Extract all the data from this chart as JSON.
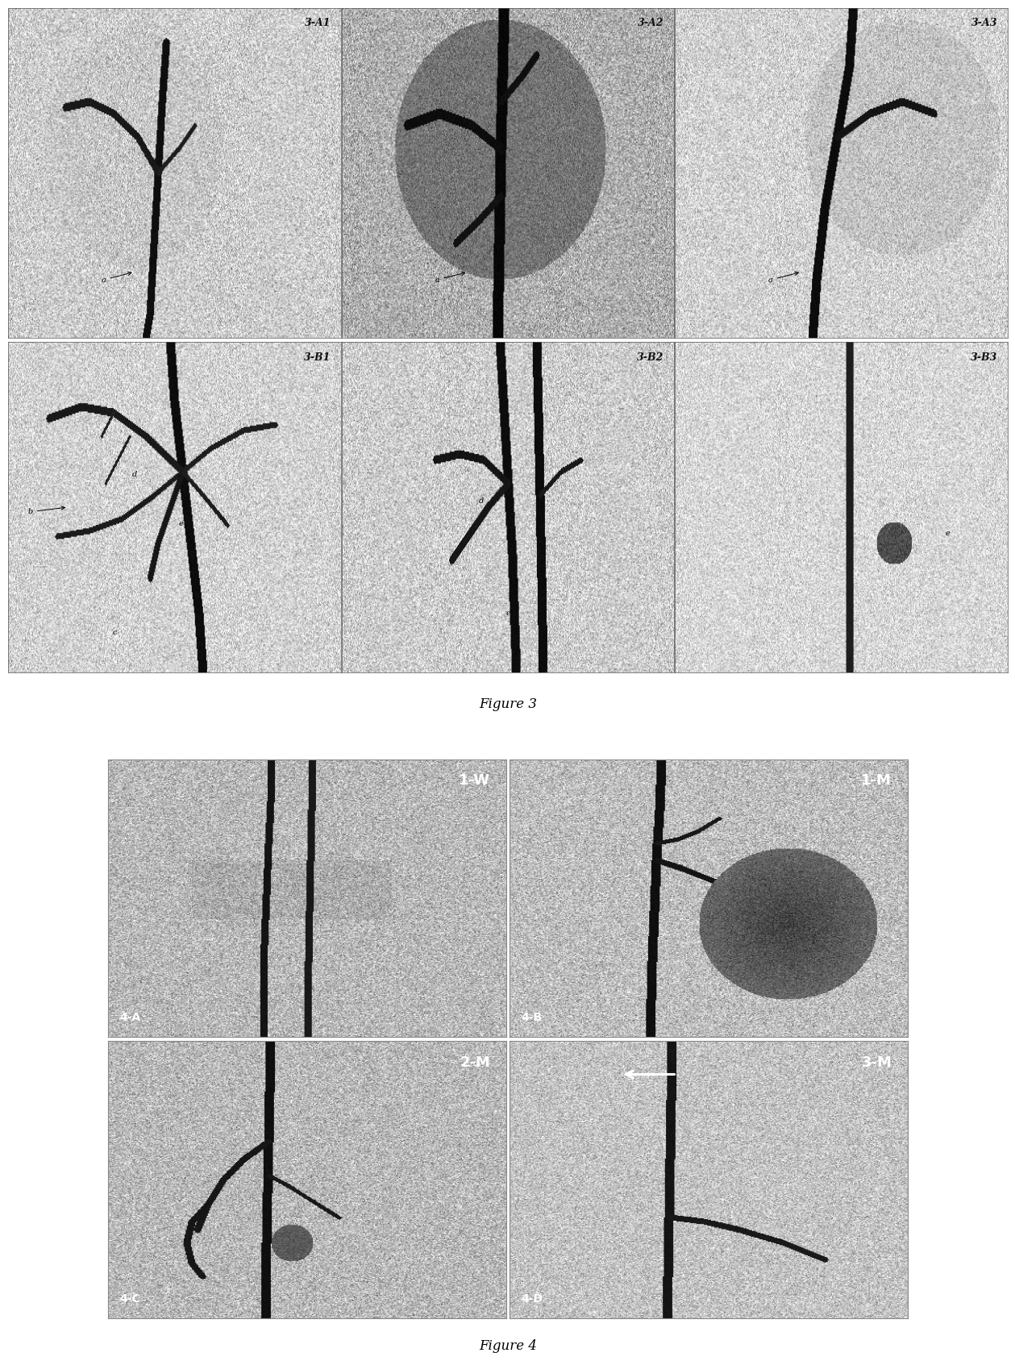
{
  "figure3_labels": {
    "top_row": [
      "3-A1",
      "3-A2",
      "3-A3"
    ],
    "bot_row": [
      "3-B1",
      "3-B2",
      "3-B3"
    ]
  },
  "figure4_labels": {
    "top_row": [
      "4-A",
      "4-B"
    ],
    "bot_row": [
      "4-C",
      "4-D"
    ]
  },
  "figure4_sublabels": {
    "top_row": [
      "1-W",
      "1-M"
    ],
    "bot_row": [
      "2-M",
      "3-M"
    ]
  },
  "caption3": "Figure 3",
  "caption4": "Figure 4",
  "bg_color": "#ffffff"
}
